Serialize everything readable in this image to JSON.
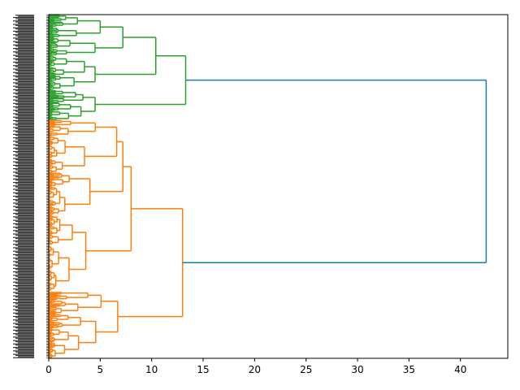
{
  "chart_data": {
    "type": "dendrogram",
    "title": "",
    "xlabel": "",
    "ylabel": "",
    "orientation": "left",
    "xlim": [
      0,
      44.6
    ],
    "xticks": [
      0,
      5,
      10,
      15,
      20,
      25,
      30,
      35,
      40
    ],
    "leaf_count_estimate": 300,
    "colors": {
      "cluster_green": "#2ca02c",
      "cluster_orange": "#ff7f0e",
      "above_threshold": "#1f77b4"
    },
    "clusters": [
      {
        "color": "cluster_green",
        "leaf_fraction": 0.305,
        "root_height": 13.3,
        "structure": [
          {
            "height": 13.3,
            "children": [
              "A",
              "B"
            ]
          },
          {
            "id": "A",
            "height": 10.4,
            "children": [
              "A1",
              "A2"
            ]
          },
          {
            "id": "A1",
            "height": 7.2,
            "children": [
              "A1a",
              "A1b"
            ]
          },
          {
            "id": "A1a",
            "height": 5.0
          },
          {
            "id": "A1b",
            "height": 4.5
          },
          {
            "id": "A2",
            "height": 4.5
          },
          {
            "id": "B",
            "height": 4.5
          }
        ]
      },
      {
        "color": "cluster_orange",
        "leaf_fraction": 0.695,
        "root_height": 13.0,
        "structure": [
          {
            "height": 13.0,
            "children": [
              "C",
              "D"
            ]
          },
          {
            "id": "C",
            "height": 8.0,
            "children": [
              "C1",
              "C2"
            ]
          },
          {
            "id": "C1",
            "height": 7.2,
            "children": [
              "C1a",
              "C1b"
            ]
          },
          {
            "id": "C1a",
            "height": 6.6
          },
          {
            "id": "C1b",
            "height": 4.0
          },
          {
            "id": "C2",
            "height": 3.6
          },
          {
            "id": "D",
            "height": 6.7
          }
        ]
      }
    ],
    "root": {
      "height": 42.5,
      "color": "above_threshold"
    }
  }
}
